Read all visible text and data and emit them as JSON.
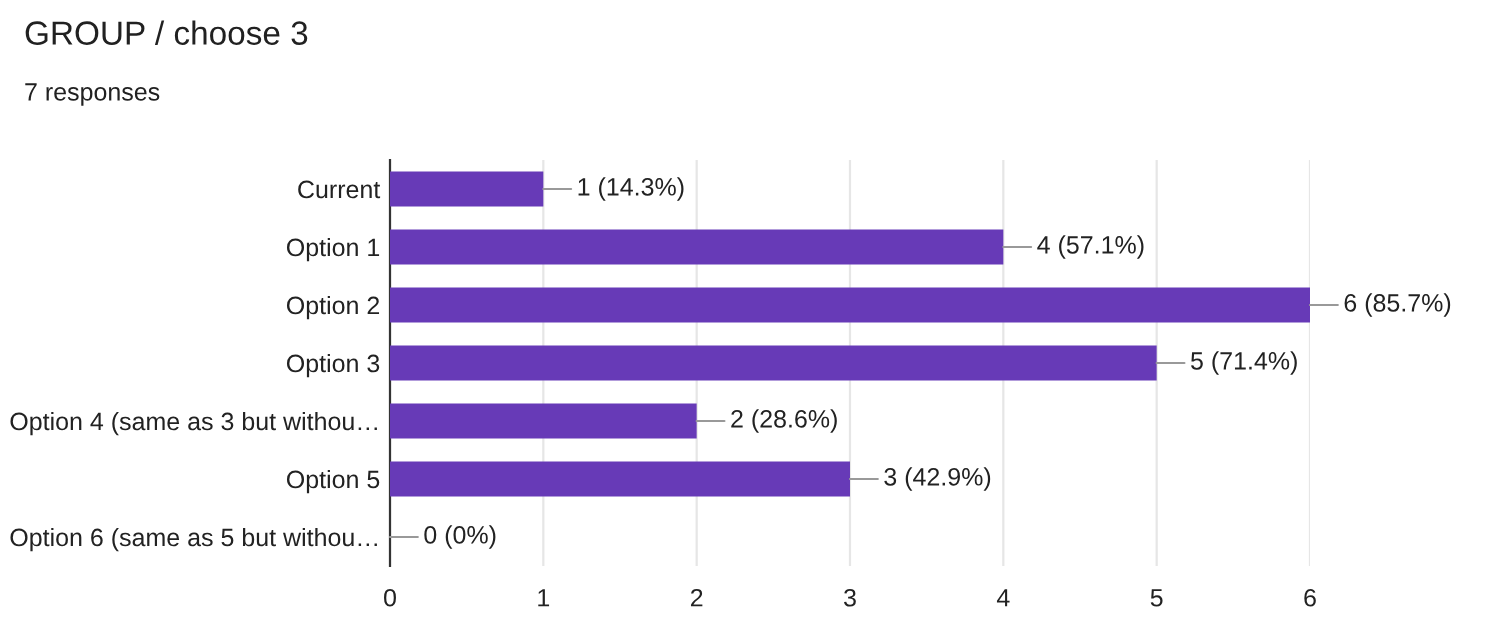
{
  "chart_data": {
    "type": "bar",
    "orientation": "horizontal",
    "title": "GROUP / choose 3",
    "subtitle": "7 responses",
    "categories": [
      "Current",
      "Option 1",
      "Option 2",
      "Option 3",
      "Option 4 (same as 3 but withou…",
      "Option 5",
      "Option 6 (same as 5 but withou…"
    ],
    "values": [
      1,
      4,
      6,
      5,
      2,
      3,
      0
    ],
    "value_labels": [
      "1 (14.3%)",
      "4 (57.1%)",
      "6 (85.7%)",
      "5 (71.4%)",
      "2 (28.6%)",
      "3 (42.9%)",
      "0 (0%)"
    ],
    "color": "#673ab7",
    "xlim": [
      0,
      6
    ],
    "xticks": [
      0,
      1,
      2,
      3,
      4,
      5,
      6
    ],
    "grid": "x",
    "legend": false
  }
}
